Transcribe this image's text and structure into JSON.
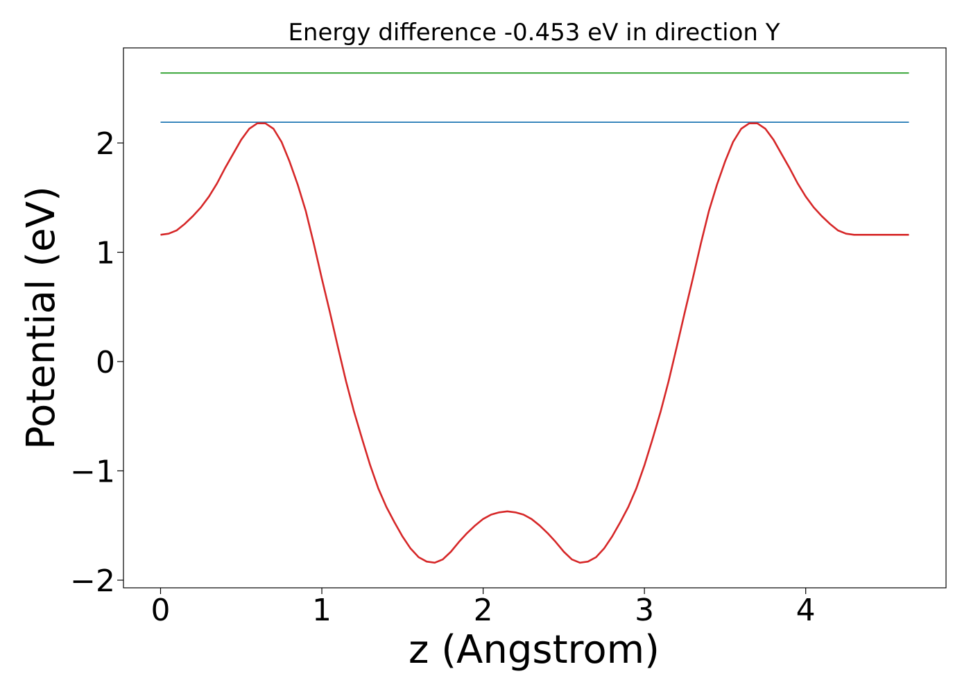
{
  "chart_data": {
    "type": "line",
    "title": "Energy difference -0.453 eV in direction Y",
    "xlabel": "z (Angstrom)",
    "ylabel": "Potential (eV)",
    "xlim": [
      -0.23,
      4.87
    ],
    "ylim": [
      -2.07,
      2.87
    ],
    "xticks": [
      0,
      1,
      2,
      3,
      4
    ],
    "xtick_labels": [
      "0",
      "1",
      "2",
      "3",
      "4"
    ],
    "yticks": [
      -2,
      -1,
      0,
      1,
      2
    ],
    "ytick_labels": [
      "−2",
      "−1",
      "0",
      "1",
      "2"
    ],
    "grid": false,
    "legend": "none",
    "series": [
      {
        "color": "#2ca02c",
        "x": [
          0,
          4.64
        ],
        "y": [
          2.64,
          2.64
        ]
      },
      {
        "color": "#1f77b4",
        "x": [
          0,
          4.64
        ],
        "y": [
          2.19,
          2.19
        ]
      },
      {
        "color": "#d62728",
        "x": [
          0,
          0.05,
          0.1,
          0.15,
          0.2,
          0.25,
          0.3,
          0.35,
          0.4,
          0.45,
          0.5,
          0.55,
          0.6,
          0.65,
          0.7,
          0.75,
          0.8,
          0.85,
          0.9,
          0.95,
          1.0,
          1.05,
          1.1,
          1.15,
          1.2,
          1.25,
          1.3,
          1.35,
          1.4,
          1.45,
          1.5,
          1.55,
          1.6,
          1.65,
          1.7,
          1.75,
          1.8,
          1.85,
          1.9,
          1.95,
          2.0,
          2.05,
          2.1,
          2.15,
          2.2,
          2.25,
          2.3,
          2.35,
          2.4,
          2.45,
          2.5,
          2.55,
          2.6,
          2.65,
          2.7,
          2.75,
          2.8,
          2.85,
          2.9,
          2.95,
          3.0,
          3.05,
          3.1,
          3.15,
          3.2,
          3.25,
          3.3,
          3.35,
          3.4,
          3.45,
          3.5,
          3.55,
          3.6,
          3.65,
          3.7,
          3.75,
          3.8,
          3.85,
          3.9,
          3.95,
          4.0,
          4.05,
          4.1,
          4.15,
          4.2,
          4.25,
          4.3,
          4.35,
          4.4,
          4.45,
          4.5,
          4.55,
          4.6,
          4.64
        ],
        "y": [
          1.16,
          1.17,
          1.2,
          1.26,
          1.33,
          1.41,
          1.51,
          1.63,
          1.77,
          1.9,
          2.03,
          2.13,
          2.18,
          2.18,
          2.13,
          2.01,
          1.83,
          1.62,
          1.38,
          1.08,
          0.76,
          0.45,
          0.13,
          -0.18,
          -0.46,
          -0.71,
          -0.95,
          -1.16,
          -1.33,
          -1.47,
          -1.6,
          -1.71,
          -1.79,
          -1.83,
          -1.84,
          -1.81,
          -1.74,
          -1.65,
          -1.57,
          -1.5,
          -1.44,
          -1.4,
          -1.38,
          -1.37,
          -1.38,
          -1.4,
          -1.44,
          -1.5,
          -1.57,
          -1.65,
          -1.74,
          -1.81,
          -1.84,
          -1.83,
          -1.79,
          -1.71,
          -1.6,
          -1.47,
          -1.33,
          -1.16,
          -0.95,
          -0.71,
          -0.46,
          -0.18,
          0.13,
          0.45,
          0.76,
          1.08,
          1.38,
          1.62,
          1.83,
          2.01,
          2.13,
          2.18,
          2.18,
          2.13,
          2.03,
          1.9,
          1.77,
          1.63,
          1.51,
          1.41,
          1.33,
          1.26,
          1.2,
          1.17,
          1.16,
          1.16,
          1.16,
          1.16,
          1.16,
          1.16,
          1.16,
          1.16
        ]
      }
    ]
  }
}
